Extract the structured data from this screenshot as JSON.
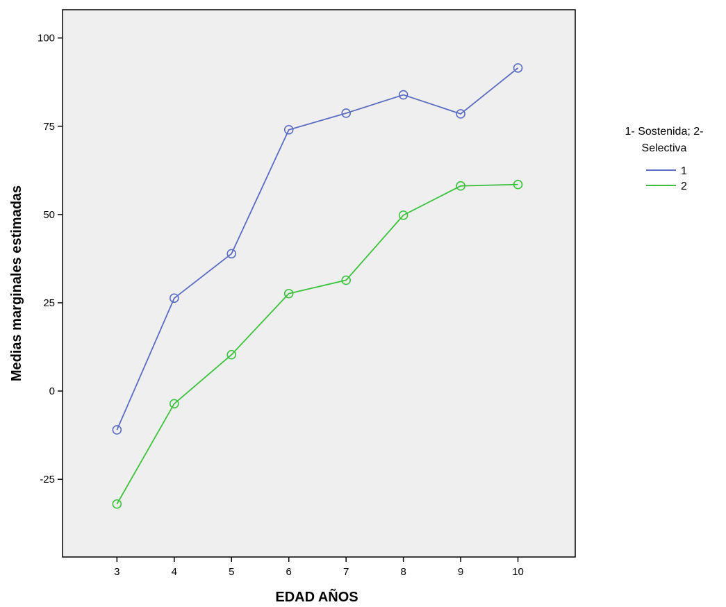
{
  "chart_data": {
    "type": "line",
    "xlabel": "EDAD AÑOS",
    "ylabel": "Medias marginales estimadas",
    "x": [
      3,
      4,
      5,
      6,
      7,
      8,
      9,
      10
    ],
    "ylim": [
      -47,
      108
    ],
    "yticks": [
      -25,
      0,
      25,
      50,
      75,
      100
    ],
    "ytick_labels": [
      "-25",
      "0",
      "25",
      "50",
      "75",
      "100"
    ],
    "xtick_labels": [
      "3",
      "4",
      "5",
      "6",
      "7",
      "8",
      "9",
      "10"
    ],
    "grid": false,
    "background": "#efefef",
    "legend": {
      "title_lines": [
        "1- Sostenida; 2-",
        "Selectiva"
      ],
      "placement": "right"
    },
    "series": [
      {
        "name": "1",
        "color": "#5b6cc2",
        "values": [
          -11,
          26.3,
          38.9,
          74,
          78.7,
          83.9,
          78.5,
          91.5
        ]
      },
      {
        "name": "2",
        "color": "#3dc23d",
        "values": [
          -32,
          -3.6,
          10.3,
          27.6,
          31.4,
          49.8,
          58.1,
          58.5
        ]
      }
    ]
  }
}
